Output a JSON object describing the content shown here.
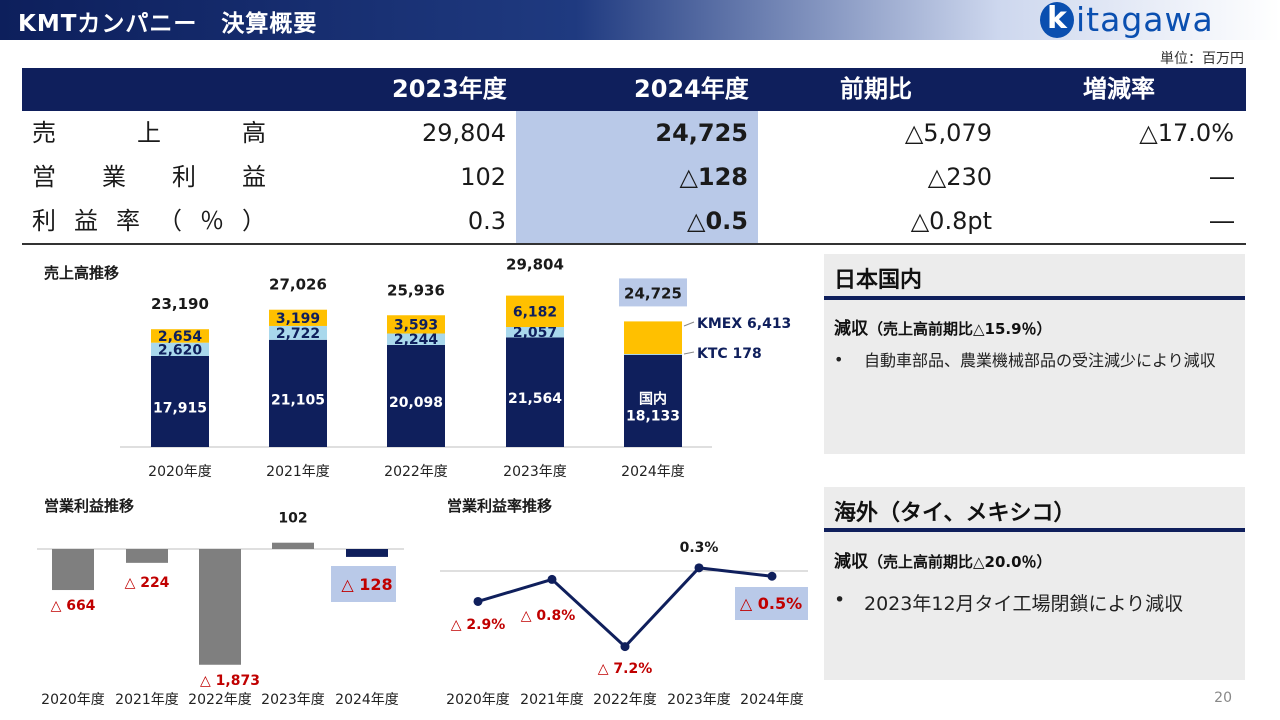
{
  "header": {
    "title": "KMTカンパニー　決算概要",
    "logo_k": "k",
    "logo_text": "itagawa"
  },
  "unit": "単位：百万円",
  "table": {
    "columns": [
      "2023年度",
      "2024年度",
      "前期比",
      "増減率"
    ],
    "rows": [
      {
        "label": [
          "売",
          "上",
          "高"
        ],
        "values": [
          "29,804",
          "24,725",
          "△5,079",
          "△17.0%"
        ]
      },
      {
        "label": [
          "営",
          "業",
          "利",
          "益"
        ],
        "values": [
          "102",
          "△128",
          "△230",
          "―"
        ]
      },
      {
        "label": [
          "利",
          "益",
          "率",
          "（",
          "％",
          "）"
        ],
        "values": [
          "0.3",
          "△0.5",
          "△0.8pt",
          "―"
        ]
      }
    ]
  },
  "colors": {
    "navy": "#0f1f5c",
    "kmex": "#ffc000",
    "ktc": "#a9d8ec",
    "gray": "#7f7f7f",
    "red": "#c00000",
    "highlight": "#b9c9e8"
  },
  "chart_titles": {
    "sales": "売上高推移",
    "op": "営業利益推移",
    "rate": "営業利益率推移"
  },
  "chart_data": [
    {
      "type": "bar",
      "title": "売上高推移",
      "categories": [
        "2020年度",
        "2021年度",
        "2022年度",
        "2023年度",
        "2024年度"
      ],
      "series": [
        {
          "name": "国内",
          "values": [
            17915,
            21105,
            20098,
            21564,
            18133
          ],
          "labels": [
            "17,915",
            "21,105",
            "20,098",
            "21,564",
            "国内\n18,133"
          ]
        },
        {
          "name": "KTC",
          "values": [
            2620,
            2722,
            2244,
            2057,
            178
          ],
          "labels": [
            "2,620",
            "2,722",
            "2,244",
            "2,057",
            ""
          ]
        },
        {
          "name": "KMEX",
          "values": [
            2654,
            3199,
            3593,
            6182,
            6413
          ],
          "labels": [
            "2,654",
            "3,199",
            "3,593",
            "6,182",
            ""
          ]
        }
      ],
      "totals": [
        "23,190",
        "27,026",
        "25,936",
        "29,804",
        "24,725"
      ],
      "annotations": [
        "KMEX 6,413",
        "KTC 178"
      ],
      "ylim": [
        0,
        32000
      ]
    },
    {
      "type": "bar",
      "title": "営業利益推移",
      "categories": [
        "2020年度",
        "2021年度",
        "2022年度",
        "2023年度",
        "2024年度"
      ],
      "values": [
        -664,
        -224,
        -1873,
        102,
        -128
      ],
      "labels": [
        "△ 664",
        "△ 224",
        "△ 1,873",
        "102",
        "△ 128"
      ],
      "ylim": [
        -1900,
        150
      ]
    },
    {
      "type": "line",
      "title": "営業利益率推移",
      "categories": [
        "2020年度",
        "2021年度",
        "2022年度",
        "2023年度",
        "2024年度"
      ],
      "values": [
        -2.9,
        -0.8,
        -7.2,
        0.3,
        -0.5
      ],
      "labels": [
        "△ 2.9%",
        "△ 0.8%",
        "△ 7.2%",
        "0.3%",
        "△ 0.5%"
      ],
      "ylim": [
        -7.5,
        1.0
      ]
    }
  ],
  "panels": [
    {
      "title": "日本国内",
      "sub": "減収",
      "sub_detail": "（売上高前期比△15.9％）",
      "bullets": [
        "自動車部品、農業機械部品の受注減少により減収"
      ]
    },
    {
      "title": "海外（タイ、メキシコ）",
      "sub": "減収",
      "sub_detail": "（売上高前期比△20.0％）",
      "bullets": [
        "2023年12月タイ工場閉鎖により減収"
      ]
    }
  ],
  "page_number": "20"
}
